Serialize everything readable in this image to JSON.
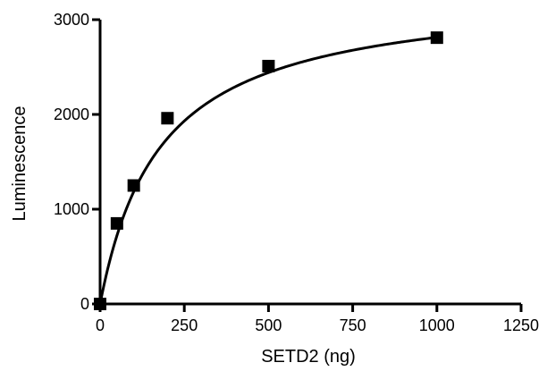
{
  "chart_data": {
    "type": "scatter",
    "title": "",
    "xlabel": "SETD2 (ng)",
    "ylabel": "Luminescence",
    "xlim": [
      0,
      1250
    ],
    "ylim": [
      0,
      3000
    ],
    "x_ticks": [
      0,
      250,
      500,
      750,
      1000,
      1250
    ],
    "y_ticks": [
      0,
      1000,
      2000,
      3000
    ],
    "x_tick_labels": [
      "0",
      "250",
      "500",
      "750",
      "1000",
      "1250"
    ],
    "y_tick_labels": [
      "0",
      "1000",
      "2000",
      "3000"
    ],
    "grid": false,
    "legend": "none",
    "series": [
      {
        "marker": "square",
        "color": "#000000",
        "points": [
          {
            "x": 0,
            "y": 0
          },
          {
            "x": 50,
            "y": 850
          },
          {
            "x": 100,
            "y": 1250
          },
          {
            "x": 200,
            "y": 1960
          },
          {
            "x": 500,
            "y": 2510
          },
          {
            "x": 1000,
            "y": 2810
          }
        ],
        "fit": {
          "model": "hyperbola",
          "bmax": 3320,
          "kd": 180,
          "color": "#000000"
        }
      }
    ]
  }
}
